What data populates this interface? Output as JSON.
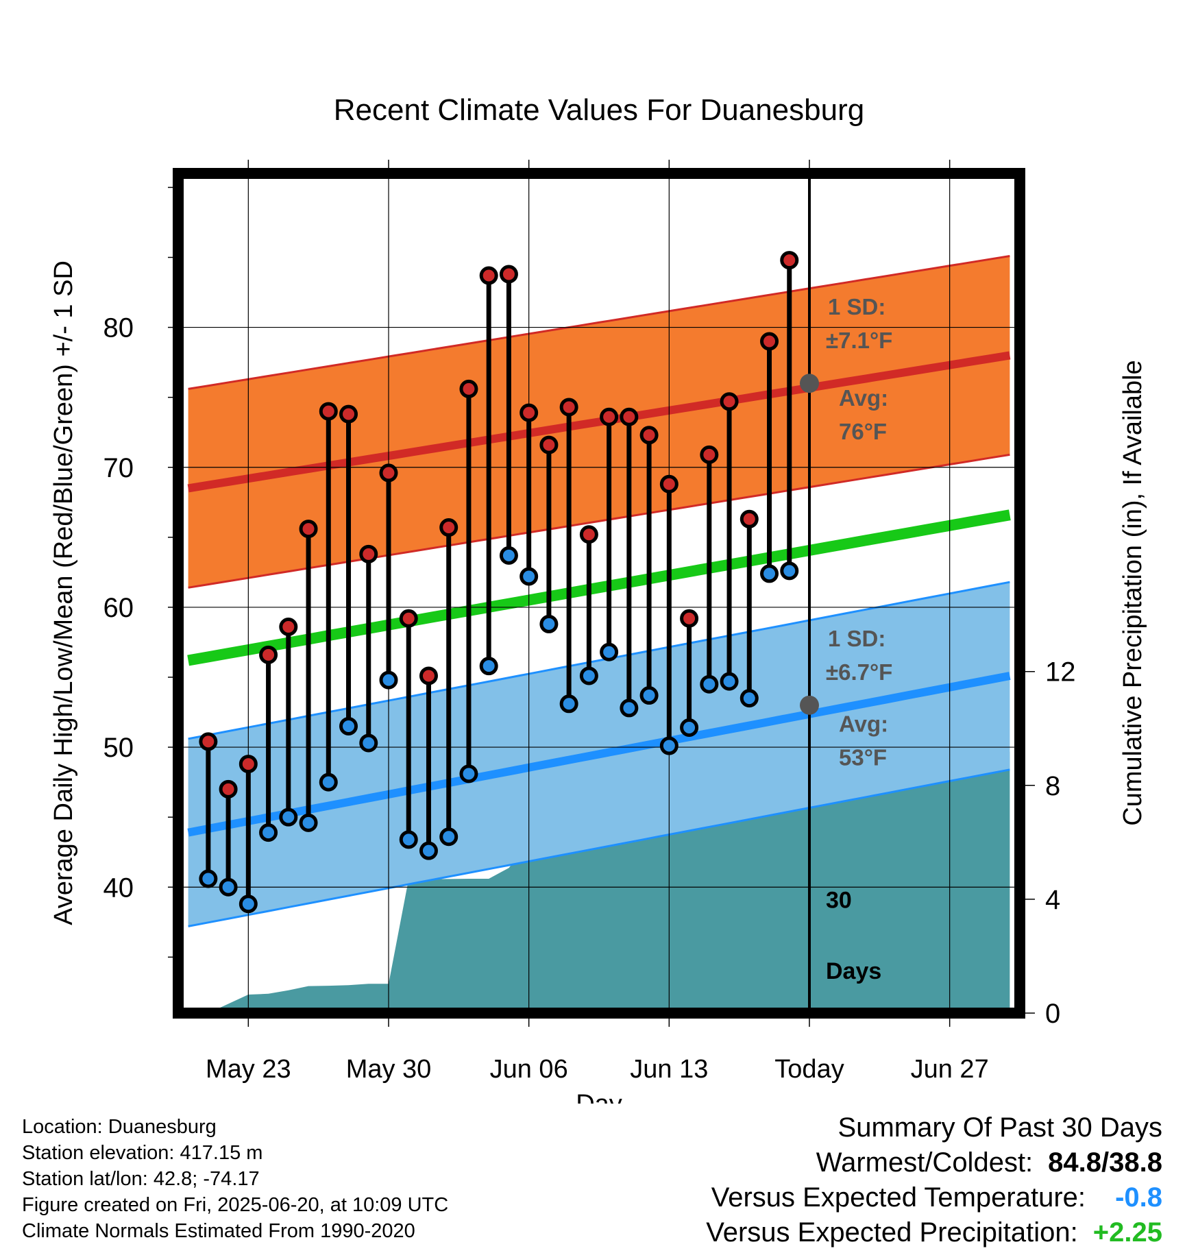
{
  "title": "Recent Climate Values For Duanesburg",
  "chart_data": {
    "type": "line",
    "title": "Recent Climate Values For Duanesburg",
    "xlabel": "Day",
    "ylabel": "Average Daily High/Low/Mean (Red/Blue/Green) +/- 1 SD",
    "y2label": "Cumulative Precipitation (in), If Available",
    "x_tick_labels": [
      "May 23",
      "May 30",
      "Jun 06",
      "Jun 13",
      "Today",
      "Jun 27"
    ],
    "x_range_days": [
      -30,
      10
    ],
    "x_tick_days": [
      -28,
      -21,
      -14,
      -7,
      0,
      7
    ],
    "ylim": [
      31,
      91
    ],
    "y_ticks": [
      40,
      50,
      60,
      70,
      80
    ],
    "y2lim": [
      0,
      29.5
    ],
    "y2_ticks": [
      0,
      4,
      8,
      12
    ],
    "grid": true,
    "today_marker": {
      "day": 0,
      "label_line1": "30",
      "label_line2": "Days"
    },
    "days": [
      -30,
      -29,
      -28,
      -27,
      -26,
      -25,
      -24,
      -23,
      -22,
      -21,
      -20,
      -19,
      -18,
      -17,
      -16,
      -15,
      -14,
      -13,
      -12,
      -11,
      -10,
      -9,
      -8,
      -7,
      -6,
      -5,
      -4,
      -3,
      -2,
      -1
    ],
    "highs": [
      50.4,
      47.0,
      48.8,
      56.6,
      58.6,
      65.6,
      74.0,
      73.8,
      63.8,
      69.6,
      59.2,
      55.1,
      65.7,
      75.6,
      83.7,
      83.8,
      73.9,
      71.6,
      74.3,
      65.2,
      73.6,
      73.6,
      72.3,
      68.8,
      59.2,
      70.9,
      74.7,
      66.3,
      79.0,
      84.8
    ],
    "lows": [
      40.6,
      40.0,
      38.8,
      43.9,
      45.0,
      44.6,
      47.5,
      51.5,
      50.3,
      54.8,
      43.4,
      42.6,
      43.6,
      48.1,
      55.8,
      63.7,
      62.2,
      58.8,
      53.1,
      55.1,
      56.8,
      52.8,
      53.7,
      50.1,
      51.4,
      54.5,
      54.7,
      53.5,
      62.4,
      62.6
    ],
    "normals": {
      "days": [
        -31,
        10
      ],
      "mean": [
        56.2,
        66.6
      ],
      "high": [
        68.5,
        78.0
      ],
      "high_sd": 7.1,
      "low": [
        43.9,
        55.1
      ],
      "low_sd": 6.7
    },
    "precip_cumulative": {
      "days": [
        -31,
        -30,
        -28,
        -27,
        -26,
        -25,
        -24,
        -23,
        -22,
        -21,
        -20,
        -19,
        -17,
        -16,
        -15,
        -14,
        -13,
        -12,
        -11,
        -10,
        -9,
        -8,
        -7,
        -6,
        -5,
        -4,
        -3,
        -2,
        -1,
        0,
        10
      ],
      "values": [
        0,
        0.0,
        0.65,
        0.68,
        0.8,
        0.95,
        0.96,
        0.98,
        1.03,
        1.03,
        4.7,
        4.7,
        4.72,
        4.72,
        5.1,
        5.95,
        7.15,
        7.15,
        8.0,
        8.35,
        8.35,
        8.35,
        8.42,
        8.52,
        8.52,
        8.52,
        8.7,
        8.95,
        9.18,
        9.18,
        9.18
      ]
    },
    "annotations": {
      "high_sd_label": "1 SD:",
      "high_sd_value": "±7.1°F",
      "high_avg_label": "Avg:",
      "high_avg_value": "76°F",
      "high_avg_marker": 76,
      "low_sd_label": "1 SD:",
      "low_sd_value": "±6.7°F",
      "low_avg_label": "Avg:",
      "low_avg_value": "53°F",
      "low_avg_marker": 53
    },
    "colors": {
      "high_band": "#f47b2e",
      "high_line": "#d12a26",
      "low_band": "#82c0e8",
      "low_line": "#1e90ff",
      "mean_line": "#17c917",
      "precip": "#4a9aa1",
      "high_dot": "#cc2a2a",
      "low_dot": "#2a8de3",
      "annotation": "#555555"
    }
  },
  "footer": {
    "location": "Location: Duanesburg",
    "elevation": "Station elevation: 417.15 m",
    "latlon": "Station lat/lon: 42.8; -74.17",
    "created": "Figure created on Fri, 2025-06-20, at 10:09 UTC",
    "normals": "Climate Normals Estimated From 1990-2020"
  },
  "summary": {
    "heading": "Summary Of Past 30 Days",
    "warm_cold_label": "Warmest/Coldest:",
    "warm_cold_value": "84.8/38.8",
    "temp_label": "Versus Expected Temperature:",
    "temp_value": "-0.8",
    "temp_color": "#1e90ff",
    "precip_label": "Versus Expected Precipitation:",
    "precip_value": "+2.25",
    "precip_color": "#22bb22"
  }
}
